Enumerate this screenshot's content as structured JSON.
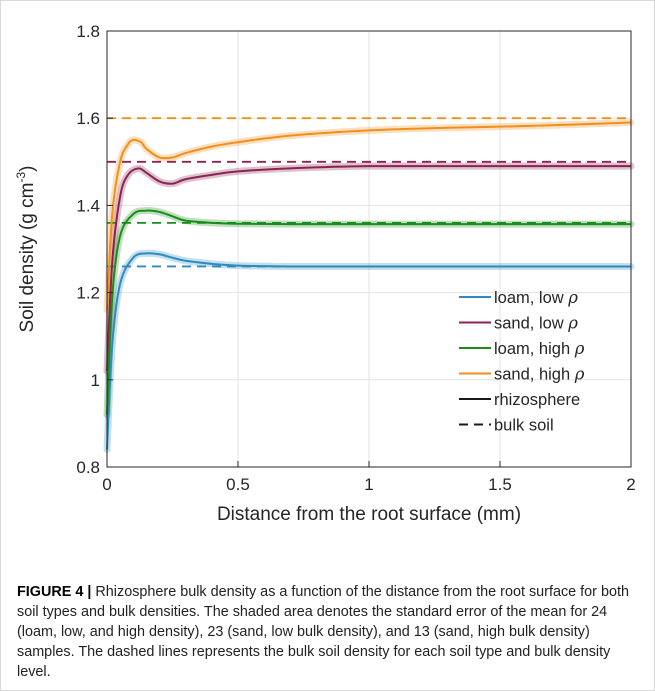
{
  "chart_data": {
    "type": "line",
    "xlabel": "Distance from the root surface (mm)",
    "ylabel_main": "Soil density (g cm",
    "ylabel_sup": "-3",
    "ylabel_close": ")",
    "xlim": [
      0,
      2
    ],
    "ylim": [
      0.8,
      1.8
    ],
    "xticks": [
      0,
      0.5,
      1,
      1.5,
      2
    ],
    "xtick_labels": [
      "0",
      "0.5",
      "1",
      "1.5",
      "2"
    ],
    "yticks": [
      0.8,
      1,
      1.2,
      1.4,
      1.6,
      1.8
    ],
    "ytick_labels": [
      "0.8",
      "1",
      "1.2",
      "1.4",
      "1.6",
      "1.8"
    ],
    "grid": true,
    "legend_position": "bottom-right",
    "series": [
      {
        "name": "loam, low ρ",
        "legend_main": "loam, low ",
        "color": "#2e8bc0",
        "bulk": 1.26,
        "x": [
          0,
          0.02,
          0.05,
          0.1,
          0.15,
          0.2,
          0.25,
          0.3,
          0.4,
          0.5,
          0.7,
          1.0,
          1.5,
          2.0
        ],
        "y": [
          0.84,
          1.08,
          1.22,
          1.28,
          1.29,
          1.288,
          1.28,
          1.273,
          1.266,
          1.262,
          1.26,
          1.26,
          1.26,
          1.26
        ]
      },
      {
        "name": "sand, low ρ",
        "legend_main": "sand, low ",
        "color": "#8c2351",
        "bulk": 1.5,
        "x": [
          0,
          0.02,
          0.05,
          0.08,
          0.12,
          0.15,
          0.2,
          0.25,
          0.3,
          0.4,
          0.5,
          0.7,
          1.0,
          1.5,
          2.0
        ],
        "y": [
          1.02,
          1.27,
          1.42,
          1.47,
          1.485,
          1.475,
          1.455,
          1.45,
          1.46,
          1.47,
          1.478,
          1.485,
          1.49,
          1.49,
          1.49
        ]
      },
      {
        "name": "loam, high ρ",
        "legend_main": "loam, high ",
        "color": "#1a8c1a",
        "bulk": 1.36,
        "x": [
          0,
          0.02,
          0.05,
          0.1,
          0.15,
          0.2,
          0.25,
          0.3,
          0.4,
          0.5,
          0.7,
          1.0,
          1.5,
          2.0
        ],
        "y": [
          0.92,
          1.19,
          1.33,
          1.38,
          1.388,
          1.385,
          1.375,
          1.365,
          1.36,
          1.358,
          1.357,
          1.357,
          1.357,
          1.357
        ]
      },
      {
        "name": "sand, high ρ",
        "legend_main": "sand, high ",
        "color": "#f28f1c",
        "bulk": 1.6,
        "x": [
          0,
          0.02,
          0.05,
          0.08,
          0.1,
          0.13,
          0.15,
          0.2,
          0.25,
          0.3,
          0.4,
          0.5,
          0.7,
          1.0,
          1.3,
          1.6,
          2.0
        ],
        "y": [
          1.16,
          1.38,
          1.5,
          1.54,
          1.55,
          1.545,
          1.53,
          1.51,
          1.51,
          1.52,
          1.535,
          1.545,
          1.56,
          1.572,
          1.578,
          1.582,
          1.59
        ]
      }
    ],
    "legend_extra": [
      {
        "label": "rhizosphere",
        "style": "solid"
      },
      {
        "label": "bulk soil",
        "style": "dashed"
      }
    ]
  },
  "caption": {
    "label": "FIGURE 4 |",
    "text": " Rhizosphere bulk density as a function of the distance from the root surface for both soil types and bulk densities. The shaded area denotes the standard error of the mean for 24 (loam, low, and high density), 23 (sand, low bulk density), and 13 (sand, high bulk density) samples. The dashed lines represents the bulk soil density for each soil type and bulk density level."
  }
}
